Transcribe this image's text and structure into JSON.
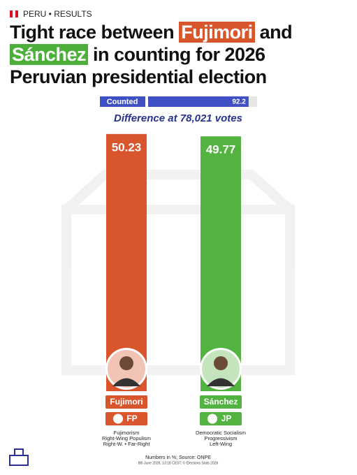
{
  "header": "PERU • RESULTS",
  "chart_data": {
    "type": "bar",
    "title": [
      {
        "text": "Tight race between "
      },
      {
        "text": "Fujimori",
        "highlight": "#d9562d"
      },
      {
        "text": " and "
      },
      {
        "text": "Sánchez",
        "highlight": "#4caf3a"
      },
      {
        "text": " in counting for 2026 Peruvian presidential election"
      }
    ],
    "counted_label": "Counted",
    "counted": 92.2,
    "counted_lim": [
      0,
      100
    ],
    "subtitle": "Difference at 78,021 votes",
    "categories": [
      "Fujimori",
      "Sánchez"
    ],
    "values": [
      50.23,
      49.77
    ],
    "colors": [
      "#d9562d",
      "#52b340"
    ],
    "parties": [
      "FP",
      "JP"
    ],
    "ideologies": [
      [
        "Fujimorism",
        "Right-Wing Populism",
        "Right-W. • Far-Right"
      ],
      [
        "Democratic Socialism",
        "Progressivism",
        "Left-Wing"
      ]
    ],
    "ylim": [
      0,
      50
    ],
    "footnote": "Numbers in %; Source: ONPE",
    "credit": "8th June 2026, 13:18 CEST; © Elections Stats 2026"
  }
}
